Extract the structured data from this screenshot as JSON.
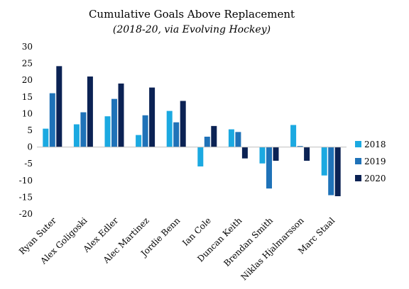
{
  "chart_data": {
    "type": "bar",
    "title": "Cumulative Goals Above Replacement",
    "subtitle": "(2018-20, via Evolving Hockey)",
    "xlabel": "",
    "ylabel": "",
    "ylim": [
      -20,
      30
    ],
    "yticks": [
      30,
      25,
      20,
      15,
      10,
      5,
      0,
      -5,
      -10,
      -15,
      -20
    ],
    "grid": false,
    "legend_position": "right",
    "categories": [
      "Ryan Suter",
      "Alex Goligoski",
      "Alex Edler",
      "Alec Martinez",
      "Jordie Benn",
      "Ian Cole",
      "Duncan Keith",
      "Brendan Smith",
      "Niklas Hjalmarsson",
      "Marc Staal"
    ],
    "series": [
      {
        "name": "2018",
        "color": "#1ba9e1",
        "values": [
          5.5,
          6.8,
          9.2,
          3.6,
          10.8,
          -5.8,
          5.3,
          -4.9,
          6.6,
          -8.5
        ]
      },
      {
        "name": "2019",
        "color": "#1f72b8",
        "values": [
          16.1,
          10.4,
          14.4,
          9.5,
          7.4,
          3.1,
          4.5,
          -12.4,
          0.3,
          -14.4
        ]
      },
      {
        "name": "2020",
        "color": "#0b2254",
        "values": [
          24.2,
          21.1,
          19.0,
          17.8,
          13.8,
          6.3,
          -3.4,
          -4.1,
          -4.1,
          -14.7
        ]
      }
    ]
  }
}
